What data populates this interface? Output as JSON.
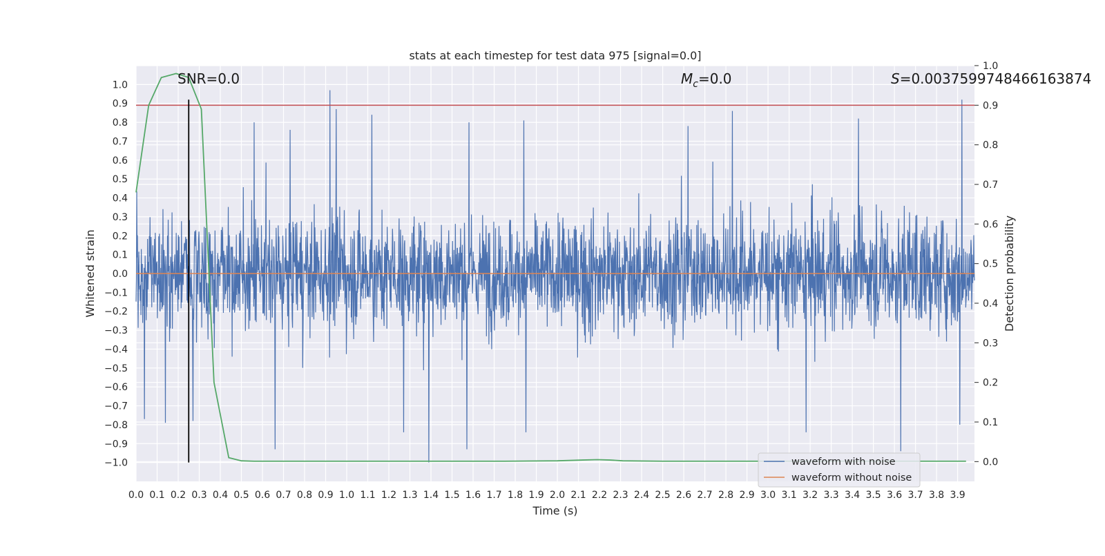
{
  "chart_data": {
    "type": "line",
    "title": "stats at each timestep for test data 975 [signal=0.0]",
    "xlabel": "Time (s)",
    "ylabel": "Whitened strain",
    "y2label": "Detection probability",
    "xlim": [
      0.0,
      3.98
    ],
    "ylim": [
      -1.1,
      1.1
    ],
    "y2lim": [
      -0.05,
      1.0
    ],
    "grid": true,
    "legend_position": "lower right",
    "xticks": [
      "0.0",
      "0.1",
      "0.2",
      "0.3",
      "0.4",
      "0.5",
      "0.6",
      "0.7",
      "0.8",
      "0.9",
      "1.0",
      "1.1",
      "1.2",
      "1.3",
      "1.4",
      "1.5",
      "1.6",
      "1.7",
      "1.8",
      "1.9",
      "2.0",
      "2.1",
      "2.2",
      "2.3",
      "2.4",
      "2.5",
      "2.6",
      "2.7",
      "2.8",
      "2.9",
      "3.0",
      "3.1",
      "3.2",
      "3.3",
      "3.4",
      "3.5",
      "3.6",
      "3.7",
      "3.8",
      "3.9"
    ],
    "yticks": [
      "1.0",
      "0.9",
      "0.8",
      "0.7",
      "0.6",
      "0.5",
      "0.4",
      "0.3",
      "0.2",
      "0.1",
      "0.0",
      "−0.1",
      "−0.2",
      "−0.3",
      "−0.4",
      "−0.5",
      "−0.6",
      "−0.7",
      "−0.8",
      "−0.9",
      "−1.0"
    ],
    "y2ticks": [
      "1.0",
      "0.9",
      "0.8",
      "0.7",
      "0.6",
      "0.5",
      "0.4",
      "0.3",
      "0.2",
      "0.1",
      "0.0"
    ],
    "series": [
      {
        "name": "waveform with noise",
        "color": "#4c72b0",
        "kind": "noise",
        "x_range": [
          0.0,
          3.98
        ],
        "peaks": [
          {
            "x": 0.92,
            "y": 0.97
          },
          {
            "x": 3.92,
            "y": 0.92
          },
          {
            "x": 0.95,
            "y": 0.87
          },
          {
            "x": 2.83,
            "y": 0.86
          },
          {
            "x": 1.12,
            "y": 0.84
          },
          {
            "x": 3.43,
            "y": 0.82
          },
          {
            "x": 1.84,
            "y": 0.81
          },
          {
            "x": 0.56,
            "y": 0.8
          },
          {
            "x": 1.58,
            "y": 0.8
          },
          {
            "x": 2.62,
            "y": 0.78
          },
          {
            "x": 1.39,
            "y": -1.0
          },
          {
            "x": 3.63,
            "y": -0.94
          },
          {
            "x": 0.66,
            "y": -0.93
          },
          {
            "x": 1.57,
            "y": -0.93
          },
          {
            "x": 1.85,
            "y": -0.84
          },
          {
            "x": 1.27,
            "y": -0.84
          },
          {
            "x": 3.18,
            "y": -0.84
          },
          {
            "x": 3.91,
            "y": -0.8
          },
          {
            "x": 0.14,
            "y": -0.79
          },
          {
            "x": 0.27,
            "y": -0.78
          },
          {
            "x": 0.04,
            "y": -0.77
          }
        ]
      },
      {
        "name": "waveform without noise",
        "color": "#dd8452",
        "axis": "left",
        "x": [
          0.0,
          3.98
        ],
        "y": [
          0.0,
          0.0
        ]
      },
      {
        "color": "#55a868",
        "axis": "right",
        "x": [
          0.0,
          0.06,
          0.12,
          0.19,
          0.25,
          0.31,
          0.37,
          0.44,
          0.5,
          0.56,
          0.62,
          0.75,
          1.0,
          1.25,
          1.5,
          1.75,
          2.0,
          2.12,
          2.19,
          2.25,
          2.31,
          2.5,
          2.75,
          3.0,
          3.25,
          3.5,
          3.75,
          3.94
        ],
        "y": [
          0.68,
          0.9,
          0.97,
          0.98,
          0.97,
          0.89,
          0.2,
          0.01,
          0.002,
          0.001,
          0.001,
          0.001,
          0.001,
          0.001,
          0.001,
          0.001,
          0.002,
          0.004,
          0.005,
          0.004,
          0.002,
          0.001,
          0.001,
          0.001,
          0.001,
          0.001,
          0.001,
          0.001
        ]
      }
    ],
    "hlines": [
      {
        "axis": "right",
        "y": 0.9,
        "color": "#c44e52"
      }
    ],
    "vlines": [
      {
        "x": 0.25,
        "ymin": -1.0,
        "ymax": 0.92,
        "color": "#000000"
      }
    ],
    "annotations": [
      {
        "id": "snr",
        "text": "SNR=0.0",
        "x": 0.2
      },
      {
        "id": "mc",
        "text_var": "M",
        "text_sub": "c",
        "text_rest": "=0.0",
        "x": 2.6
      },
      {
        "id": "s",
        "text_var": "S",
        "text_rest": "=0.0037599748466163874",
        "x": 3.6
      }
    ]
  }
}
